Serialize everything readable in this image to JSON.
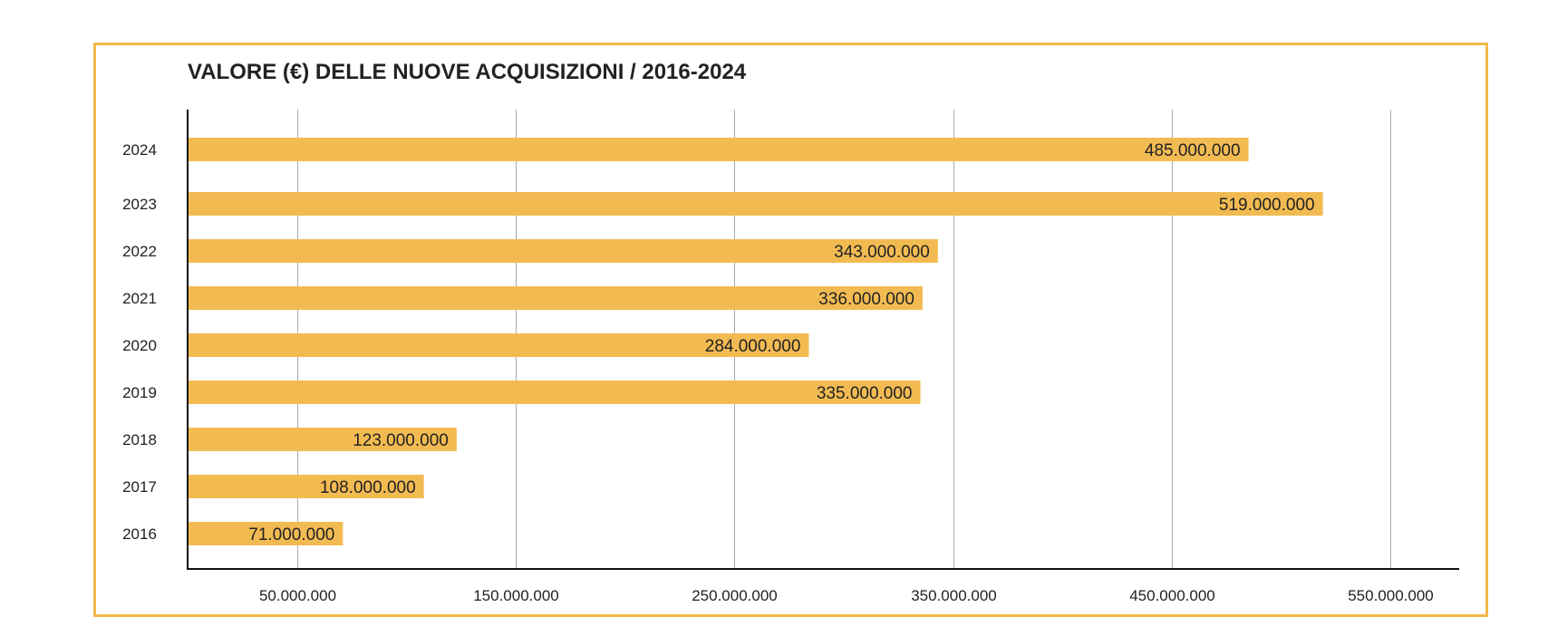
{
  "chart_data": {
    "type": "bar",
    "orientation": "horizontal",
    "title": "VALORE (€) DELLE NUOVE ACQUISIZIONI / 2016-2024",
    "categories": [
      "2024",
      "2023",
      "2022",
      "2021",
      "2020",
      "2019",
      "2018",
      "2017",
      "2016"
    ],
    "values": [
      485000000,
      519000000,
      343000000,
      336000000,
      284000000,
      335000000,
      123000000,
      108000000,
      71000000
    ],
    "data_labels": [
      "485.000.000",
      "519.000.000",
      "343.000.000",
      "336.000.000",
      "284.000.000",
      "335.000.000",
      "123.000.000",
      "108.000.000",
      "71.000.000"
    ],
    "x_ticks": [
      50000000,
      150000000,
      250000000,
      350000000,
      450000000,
      550000000
    ],
    "x_tick_labels": [
      "50.000.000",
      "150.000.000",
      "250.000.000",
      "350.000.000",
      "450.000.000",
      "550.000.000"
    ],
    "xlim": [
      0,
      580000000
    ],
    "grid": true,
    "legend": "none",
    "bar_color": "#f2bb52",
    "frame_color": "#f0b94c"
  }
}
